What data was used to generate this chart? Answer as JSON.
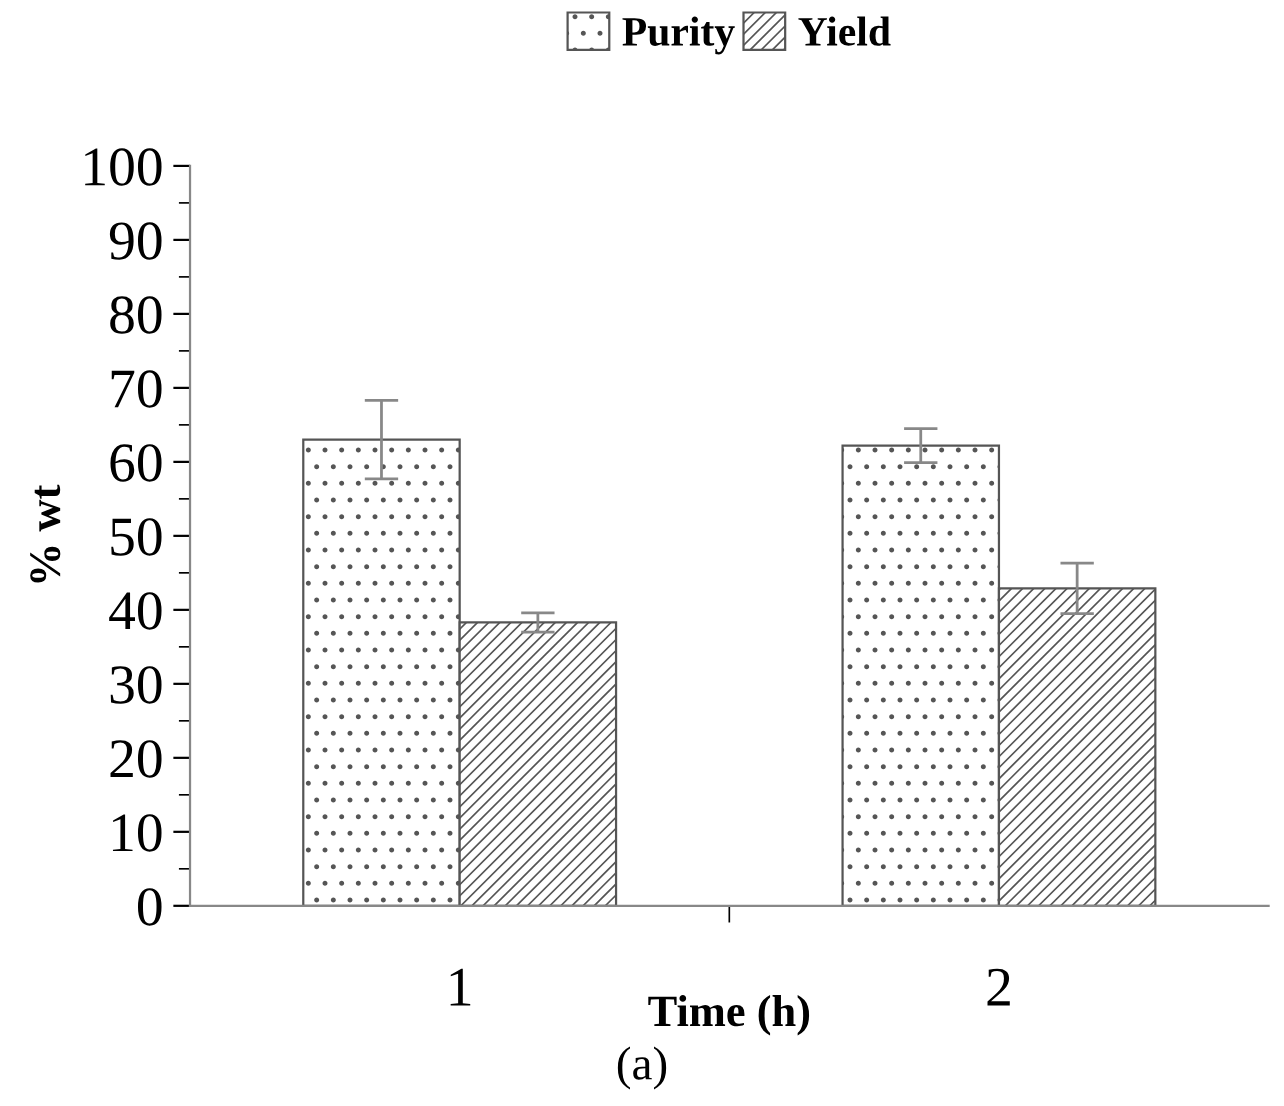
{
  "chart_data": {
    "type": "bar",
    "categories": [
      "1",
      "2"
    ],
    "series": [
      {
        "name": "Purity",
        "color": "#555555",
        "values": [
          63.0,
          62.2
        ],
        "errors": [
          5.3,
          2.3
        ]
      },
      {
        "name": "Yield",
        "color": "#555555",
        "values": [
          38.3,
          42.9
        ],
        "errors": [
          1.3,
          3.4
        ]
      }
    ],
    "xlabel": "Time (h)",
    "ylabel": "% wt",
    "ylim": [
      0,
      100
    ],
    "yticks": [
      0,
      10,
      20,
      30,
      40,
      50,
      60,
      70,
      80,
      90,
      100
    ],
    "grid": false,
    "legend": "top",
    "annotations": [
      "(a)"
    ]
  }
}
